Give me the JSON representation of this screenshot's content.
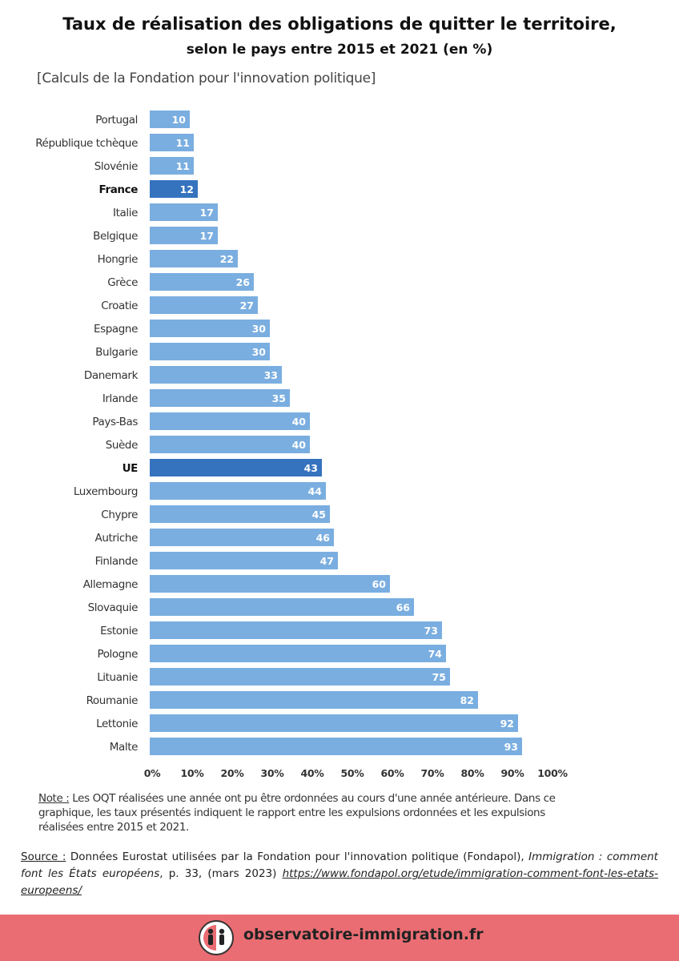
{
  "header": {
    "title": "Taux de réalisation des obligations de quitter le territoire,",
    "subtitle": "selon le pays entre 2015 et 2021 (en %)",
    "credit": "[Calculs de la Fondation pour l'innovation politique]"
  },
  "chart_data": {
    "type": "bar",
    "orientation": "horizontal",
    "categories": [
      "Portugal",
      "République tchèque",
      "Slovénie",
      "France",
      "Italie",
      "Belgique",
      "Hongrie",
      "Grèce",
      "Croatie",
      "Espagne",
      "Bulgarie",
      "Danemark",
      "Irlande",
      "Pays-Bas",
      "Suède",
      "UE",
      "Luxembourg",
      "Chypre",
      "Autriche",
      "Finlande",
      "Allemagne",
      "Slovaquie",
      "Estonie",
      "Pologne",
      "Lituanie",
      "Roumanie",
      "Lettonie",
      "Malte"
    ],
    "values": [
      10,
      11,
      11,
      12,
      17,
      17,
      22,
      26,
      27,
      30,
      30,
      33,
      35,
      40,
      40,
      43,
      44,
      45,
      46,
      47,
      60,
      66,
      73,
      74,
      75,
      82,
      92,
      93
    ],
    "highlighted": [
      "France",
      "UE"
    ],
    "xlim": [
      0,
      100
    ],
    "x_ticks": [
      "0%",
      "10%",
      "20%",
      "30%",
      "40%",
      "50%",
      "60%",
      "70%",
      "80%",
      "90%",
      "100%"
    ],
    "grid": false,
    "colors": {
      "bar": "#7aaee0",
      "highlight": "#3573bf",
      "value_text": "#ffffff"
    }
  },
  "note": {
    "lead": "Note :",
    "text": " Les OQT réalisées une année ont pu être ordonnées au cours d'une année antérieure. Dans ce graphique, les taux présentés indiquent le rapport entre les expulsions ordonnées et les expulsions réalisées entre 2015 et 2021."
  },
  "source": {
    "lead": "Source :",
    "text1": " Données Eurostat utilisées par la Fondation pour l'innovation politique (Fondapol), ",
    "title": "Immigration : comment font les États européens",
    "text2": ", p. 33, (mars 2023) ",
    "url": "https://www.fondapol.org/etude/immigration-comment-font-les-etats-europeens/"
  },
  "footer": {
    "site": "observatoire-immigration.fr",
    "logo_icon": "people-silhouette-icon",
    "background": "#e96d72"
  }
}
